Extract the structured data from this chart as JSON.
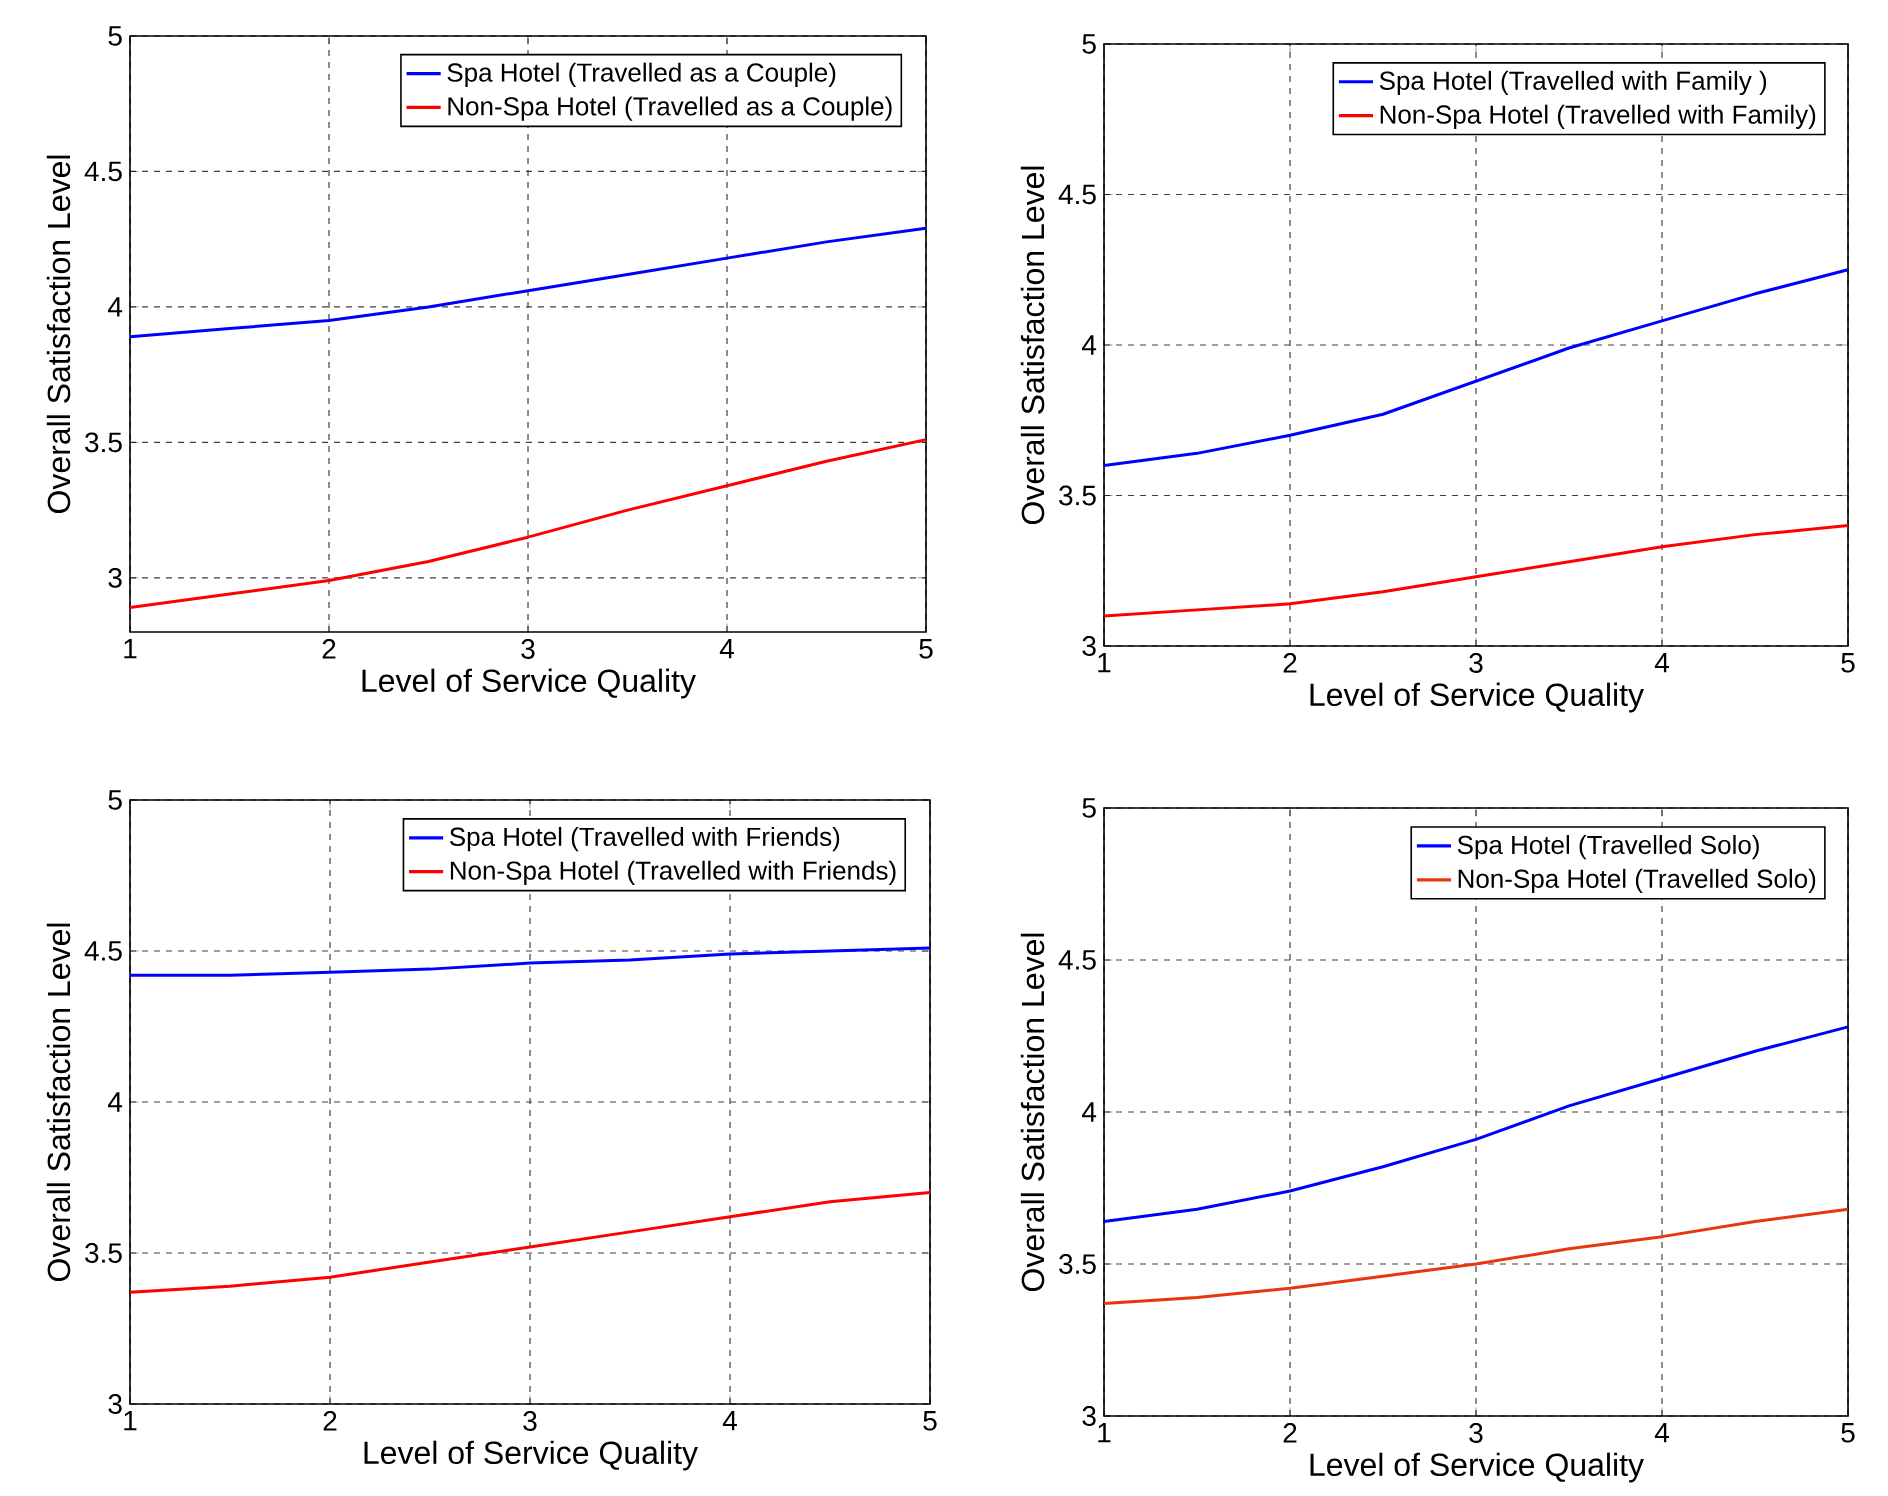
{
  "chart_data": [
    {
      "type": "line",
      "xlabel": "Level of Service Quality",
      "ylabel": "Overall Satisfaction Level",
      "x": [
        1,
        1.5,
        2,
        2.5,
        3,
        3.5,
        4,
        4.5,
        5
      ],
      "xlim": [
        1,
        5
      ],
      "ylim": [
        2.8,
        5
      ],
      "xticks": [
        1,
        2,
        3,
        4,
        5
      ],
      "yticks": [
        3,
        3.5,
        4,
        4.5,
        5
      ],
      "grid": true,
      "legend": "top right",
      "line_style": "solid",
      "series": [
        {
          "name": "Spa Hotel (Travelled as a Couple)",
          "color": "#0000ff",
          "values": [
            3.89,
            3.92,
            3.95,
            4.0,
            4.06,
            4.12,
            4.18,
            4.24,
            4.29
          ]
        },
        {
          "name": "Non-Spa Hotel (Travelled as a Couple)",
          "color": "#ff0000",
          "values": [
            2.89,
            2.94,
            2.99,
            3.06,
            3.15,
            3.25,
            3.34,
            3.43,
            3.51
          ]
        }
      ]
    },
    {
      "type": "line",
      "xlabel": "Level of Service Quality",
      "ylabel": "Overall Satisfaction Level",
      "x": [
        1,
        1.5,
        2,
        2.5,
        3,
        3.5,
        4,
        4.5,
        5
      ],
      "xlim": [
        1,
        5
      ],
      "ylim": [
        3,
        5
      ],
      "xticks": [
        1,
        2,
        3,
        4,
        5
      ],
      "yticks": [
        3,
        3.5,
        4,
        4.5,
        5
      ],
      "grid": true,
      "legend": "top right",
      "line_style": "solid",
      "series": [
        {
          "name": "Spa Hotel (Travelled with Family )",
          "color": "#0000ff",
          "values": [
            3.6,
            3.64,
            3.7,
            3.77,
            3.88,
            3.99,
            4.08,
            4.17,
            4.25
          ]
        },
        {
          "name": "Non-Spa Hotel (Travelled with Family)",
          "color": "#ff0000",
          "values": [
            3.1,
            3.12,
            3.14,
            3.18,
            3.23,
            3.28,
            3.33,
            3.37,
            3.4
          ]
        }
      ]
    },
    {
      "type": "line",
      "xlabel": "Level of Service Quality",
      "ylabel": "Overall Satisfaction Level",
      "x": [
        1,
        1.5,
        2,
        2.5,
        3,
        3.5,
        4,
        4.5,
        5
      ],
      "xlim": [
        1,
        5
      ],
      "ylim": [
        3,
        5
      ],
      "xticks": [
        1,
        2,
        3,
        4,
        5
      ],
      "yticks": [
        3,
        3.5,
        4,
        4.5,
        5
      ],
      "grid": true,
      "legend": "top right",
      "line_style": "solid",
      "series": [
        {
          "name": "Spa Hotel (Travelled with Friends)",
          "color": "#0000ff",
          "values": [
            4.42,
            4.42,
            4.43,
            4.44,
            4.46,
            4.47,
            4.49,
            4.5,
            4.51
          ]
        },
        {
          "name": "Non-Spa Hotel (Travelled with Friends)",
          "color": "#ff0000",
          "values": [
            3.37,
            3.39,
            3.42,
            3.47,
            3.52,
            3.57,
            3.62,
            3.67,
            3.7
          ]
        }
      ]
    },
    {
      "type": "line",
      "xlabel": "Level of Service Quality",
      "ylabel": "Overall Satisfaction Level",
      "x": [
        1,
        1.5,
        2,
        2.5,
        3,
        3.5,
        4,
        4.5,
        5
      ],
      "xlim": [
        1,
        5
      ],
      "ylim": [
        3,
        5
      ],
      "xticks": [
        1,
        2,
        3,
        4,
        5
      ],
      "yticks": [
        3,
        3.5,
        4,
        4.5,
        5
      ],
      "grid": true,
      "legend": "top right",
      "line_style": "solid",
      "series": [
        {
          "name": "Spa Hotel (Travelled Solo)",
          "color": "#0000ff",
          "values": [
            3.64,
            3.68,
            3.74,
            3.82,
            3.91,
            4.02,
            4.11,
            4.2,
            4.28
          ]
        },
        {
          "name": "Non-Spa Hotel (Travelled Solo)",
          "color": "#e8360e",
          "values": [
            3.37,
            3.39,
            3.42,
            3.46,
            3.5,
            3.55,
            3.59,
            3.64,
            3.68
          ]
        }
      ]
    }
  ]
}
